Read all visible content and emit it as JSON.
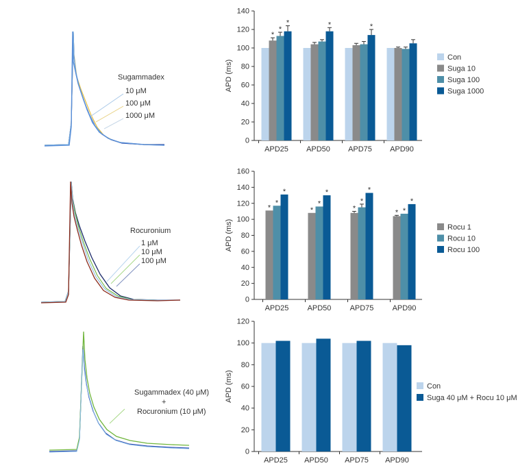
{
  "colors": {
    "con": "#bcd4ec",
    "suga10": "#8a8a8a",
    "suga100": "#4e8fa8",
    "suga1000": "#0a5a95",
    "rocu1": "#8a8a8a",
    "rocu10": "#4e8fa8",
    "rocu100": "#0a5a95",
    "combo": "#0a5a95",
    "trace_blue": "#5a8fd8",
    "trace_dark": "#1a2a6a",
    "trace_brown": "#8b2a1a",
    "trace_green": "#6fb53c",
    "trace_yellow": "#e8c040"
  },
  "traces": {
    "a": {
      "title": "Sugammadex",
      "concentrations": [
        "10 μM",
        "100 μM",
        "1000 μM"
      ]
    },
    "b": {
      "title": "Rocuronium",
      "concentrations": [
        "1 μM",
        "10 μM",
        "100 μM"
      ]
    },
    "c": {
      "line1": "Sugammadex (40 μM)",
      "line2": "+",
      "line3": "Rocuronium (10 μM)"
    }
  },
  "chart_data": [
    {
      "type": "bar",
      "title": "",
      "xlabel": "",
      "ylabel": "APD (ms)",
      "ylim": [
        0,
        140
      ],
      "yticks": [
        0,
        20,
        40,
        60,
        80,
        100,
        120,
        140
      ],
      "categories": [
        "APD25",
        "APD50",
        "APD75",
        "APD90"
      ],
      "series": [
        {
          "name": "Con",
          "color_key": "con",
          "values": [
            100,
            100,
            100,
            100
          ],
          "errors": [
            0,
            0,
            0,
            0
          ],
          "sig": [
            "",
            "",
            "",
            ""
          ]
        },
        {
          "name": "Suga 10",
          "color_key": "suga10",
          "values": [
            108,
            104,
            103,
            100
          ],
          "errors": [
            3,
            2,
            2,
            1
          ],
          "sig": [
            "*",
            "",
            "",
            ""
          ]
        },
        {
          "name": "Suga 100",
          "color_key": "suga100",
          "values": [
            113,
            107,
            104,
            99
          ],
          "errors": [
            4,
            2,
            3,
            2
          ],
          "sig": [
            "*",
            "",
            "",
            ""
          ]
        },
        {
          "name": "Suga 1000",
          "color_key": "suga1000",
          "values": [
            118,
            118,
            114,
            105
          ],
          "errors": [
            6,
            4,
            6,
            4
          ],
          "sig": [
            "*",
            "*",
            "*",
            ""
          ]
        }
      ],
      "legend": "right"
    },
    {
      "type": "bar",
      "title": "",
      "xlabel": "",
      "ylabel": "APD (ms)",
      "ylim": [
        0,
        160
      ],
      "yticks": [
        0,
        20,
        40,
        60,
        80,
        100,
        120,
        140,
        160
      ],
      "categories": [
        "APD25",
        "APD50",
        "APD75",
        "APD90"
      ],
      "series": [
        {
          "name": "Rocu 1",
          "color_key": "rocu1",
          "values": [
            111,
            108,
            108,
            104
          ],
          "errors": [
            0,
            0,
            2,
            1
          ],
          "sig": [
            "*",
            "*",
            "*",
            "*"
          ]
        },
        {
          "name": "Rocu 10",
          "color_key": "rocu10",
          "values": [
            117,
            116,
            115,
            107
          ],
          "errors": [
            0,
            0,
            4,
            0
          ],
          "sig": [
            "*",
            "*",
            "*",
            "*"
          ]
        },
        {
          "name": "Rocu 100",
          "color_key": "rocu100",
          "values": [
            131,
            130,
            133,
            119
          ],
          "errors": [
            0,
            0,
            0,
            0
          ],
          "sig": [
            "*",
            "*",
            "*",
            "*"
          ]
        }
      ],
      "legend": "right"
    },
    {
      "type": "bar",
      "title": "",
      "xlabel": "",
      "ylabel": "APD (ms)",
      "ylim": [
        0,
        120
      ],
      "yticks": [
        0,
        20,
        40,
        60,
        80,
        100,
        120
      ],
      "categories": [
        "APD25",
        "APD50",
        "APD75",
        "APD90"
      ],
      "series": [
        {
          "name": "Con",
          "color_key": "con",
          "values": [
            100,
            100,
            100,
            100
          ],
          "errors": [
            0,
            0,
            0,
            0
          ],
          "sig": [
            "",
            "",
            "",
            ""
          ]
        },
        {
          "name": "Suga 40 μM + Rocu 10 μM",
          "color_key": "combo",
          "values": [
            102,
            104,
            102,
            98
          ],
          "errors": [
            0,
            0,
            0,
            0
          ],
          "sig": [
            "",
            "",
            "",
            ""
          ]
        }
      ],
      "legend": "right"
    }
  ]
}
